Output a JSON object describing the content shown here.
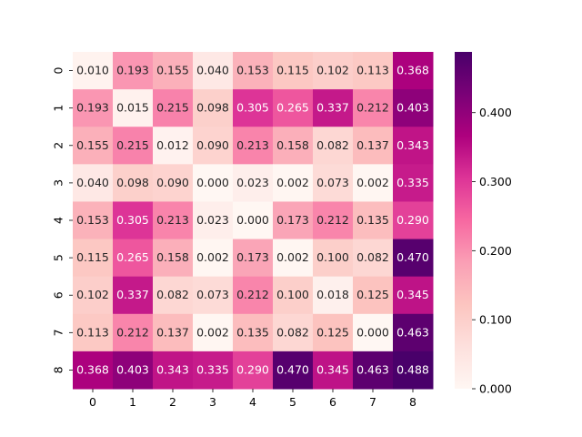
{
  "chart_data": {
    "type": "heatmap",
    "title": "",
    "xlabel": "",
    "ylabel": "",
    "x_categories": [
      "0",
      "1",
      "2",
      "3",
      "4",
      "5",
      "6",
      "7",
      "8"
    ],
    "y_categories": [
      "0",
      "1",
      "2",
      "3",
      "4",
      "5",
      "6",
      "7",
      "8"
    ],
    "values": [
      [
        0.01,
        0.193,
        0.155,
        0.04,
        0.153,
        0.115,
        0.102,
        0.113,
        0.368
      ],
      [
        0.193,
        0.015,
        0.215,
        0.098,
        0.305,
        0.265,
        0.337,
        0.212,
        0.403
      ],
      [
        0.155,
        0.215,
        0.012,
        0.09,
        0.213,
        0.158,
        0.082,
        0.137,
        0.343
      ],
      [
        0.04,
        0.098,
        0.09,
        0.0,
        0.023,
        0.002,
        0.073,
        0.002,
        0.335
      ],
      [
        0.153,
        0.305,
        0.213,
        0.023,
        0.0,
        0.173,
        0.212,
        0.135,
        0.29
      ],
      [
        0.115,
        0.265,
        0.158,
        0.002,
        0.173,
        0.002,
        0.1,
        0.082,
        0.47
      ],
      [
        0.102,
        0.337,
        0.082,
        0.073,
        0.212,
        0.1,
        0.018,
        0.125,
        0.345
      ],
      [
        0.113,
        0.212,
        0.137,
        0.002,
        0.135,
        0.082,
        0.125,
        0.0,
        0.463
      ],
      [
        0.368,
        0.403,
        0.343,
        0.335,
        0.29,
        0.47,
        0.345,
        0.463,
        0.488
      ]
    ],
    "value_format": "0.000",
    "colormap": "RdPu",
    "color_stops": [
      "#fff7f3",
      "#fde0dd",
      "#fcc5c0",
      "#fa9fb5",
      "#f768a1",
      "#dd3497",
      "#ae017e",
      "#7a0177",
      "#49006a"
    ],
    "vmin": 0.0,
    "vmax": 0.488,
    "colorbar_ticks": [
      0.0,
      0.1,
      0.2,
      0.3,
      0.4
    ],
    "colorbar_tick_labels": [
      "0.000",
      "0.100",
      "0.200",
      "0.300",
      "0.400"
    ],
    "label_light_color": "#ffffff",
    "label_dark_color": "#262626"
  }
}
